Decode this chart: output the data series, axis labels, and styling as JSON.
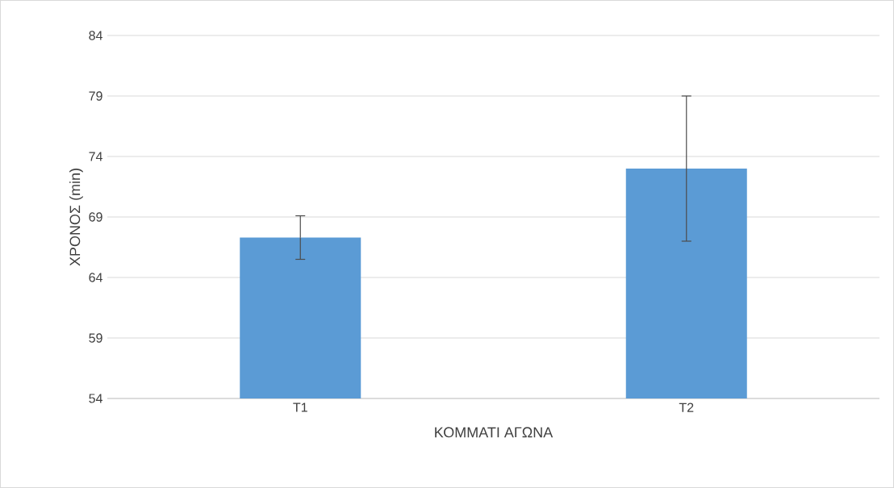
{
  "chart_data": {
    "type": "bar",
    "xlabel": "ΚΟΜΜΑΤΙ ΑΓΩΝΑ",
    "ylabel": "ΧΡΟΝΟΣ (min)",
    "categories": [
      "T1",
      "T2"
    ],
    "values": [
      67.3,
      73.0
    ],
    "errors": [
      1.8,
      6.0
    ],
    "color": "#5b9bd5",
    "ylim": [
      54,
      84
    ],
    "yticks": [
      54,
      59,
      64,
      69,
      74,
      79,
      84
    ],
    "grid": "y"
  }
}
